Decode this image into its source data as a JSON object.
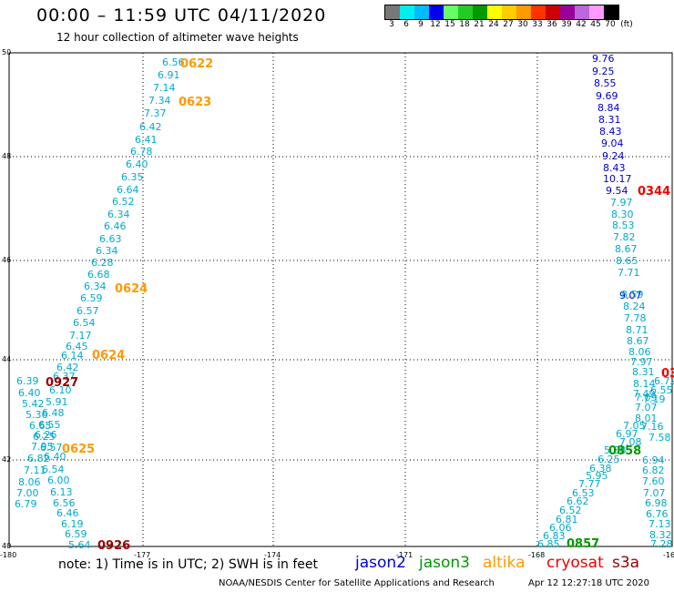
{
  "header": {
    "title": "00:00 – 11:59 UTC 04/11/2020",
    "subtitle": "12 hour collection of altimeter wave heights"
  },
  "legend": {
    "colors": [
      "#777777",
      "#00eeee",
      "#00bbff",
      "#0000ee",
      "#66ff66",
      "#22cc22",
      "#009900",
      "#ffff00",
      "#ffcc00",
      "#ff9900",
      "#ff3300",
      "#cc0000",
      "#990099",
      "#bb66dd",
      "#ff99ff",
      "#000000"
    ],
    "labels": [
      "3",
      "6",
      "9",
      "12",
      "15",
      "18",
      "21",
      "24",
      "27",
      "30",
      "33",
      "36",
      "39",
      "42",
      "45",
      "70",
      "(ft)"
    ]
  },
  "axes": {
    "lat_labels": [
      "50",
      "48",
      "46",
      "44",
      "42",
      "40"
    ],
    "lon_labels": [
      "-180",
      "-177",
      "-174",
      "-171",
      "-168",
      "-16"
    ]
  },
  "track_left_values": {
    "color": "#00aacc",
    "values": [
      "6.56",
      "6.91",
      "7.14",
      "7.34",
      "7.37",
      "6.42",
      "6.41",
      "6.78",
      "6.40",
      "6.35",
      "6.64",
      "6.52",
      "6.34",
      "6.46",
      "6.63",
      "6.34",
      "6.28",
      "6.68",
      "6.34",
      "6.59",
      "6.57",
      "6.54",
      "7.17",
      "6.45",
      "6.14",
      "6.42",
      "6.37",
      "6.10",
      "5.91",
      "6.48",
      "6.55",
      "6.26",
      "6.57",
      "6.40",
      "6.54",
      "6.00",
      "6.13",
      "6.56",
      "6.46",
      "6.19",
      "6.59",
      "5.64"
    ],
    "branch_values": [
      "6.39",
      "6.40",
      "5.42",
      "5.36",
      "6.65",
      "6.25",
      "7.95",
      "6.82",
      "7.11",
      "8.06",
      "7.00",
      "6.79"
    ]
  },
  "track_right_values": {
    "blue": [
      "9.76",
      "9.25",
      "8.55",
      "9.69",
      "8.84",
      "8.31",
      "8.43",
      "9.04",
      "9.24",
      "8.43",
      "10.17",
      "9.54",
      "9.07"
    ],
    "cyan": [
      "7.97",
      "8.30",
      "8.53",
      "7.82",
      "8.67",
      "8.65",
      "7.71",
      "8.59",
      "8.24",
      "7.78",
      "8.71",
      "8.67",
      "8.06",
      "7.97",
      "8.31",
      "8.14",
      "7.49",
      "7.07",
      "7.09",
      "8.01",
      "7.05",
      "7.16",
      "6.97",
      "7.58",
      "7.08",
      "5.88",
      "6.94",
      "6.82",
      "7.60",
      "7.07",
      "6.98",
      "6.76",
      "7.13",
      "8.32",
      "7.28"
    ],
    "lower_cyan": [
      "6.25",
      "6.38",
      "5.95",
      "7.77",
      "6.53",
      "6.62",
      "6.52",
      "6.81",
      "6.06",
      "6.83",
      "6.85"
    ],
    "edge_partial": [
      "6.72",
      "6.55",
      "7.19"
    ]
  },
  "time_labels": [
    {
      "text": "0622",
      "color": "#ff9900"
    },
    {
      "text": "0623",
      "color": "#ff9900"
    },
    {
      "text": "0624",
      "color": "#ff9900"
    },
    {
      "text": "0624",
      "color": "#ff9900"
    },
    {
      "text": "0927",
      "color": "#990000"
    },
    {
      "text": "0625",
      "color": "#ff9900"
    },
    {
      "text": "0926",
      "color": "#990000"
    },
    {
      "text": "0344",
      "color": "#ee0000"
    },
    {
      "text": "0858",
      "color": "#009900"
    },
    {
      "text": "0857",
      "color": "#009900"
    },
    {
      "text": "03",
      "color": "#ee0000"
    }
  ],
  "footer": {
    "note": "note: 1) Time is in UTC; 2) SWH is in feet",
    "sat_jason2": "jason2",
    "sat_jason3": "jason3",
    "sat_altika": "altika",
    "sat_cryosat": "cryosat",
    "sat_s3a": "s3a",
    "credit": "NOAA/NESDIS Center for Satellite Applications and Research",
    "stamp": "Apr 12 12:27:18 UTC 2020"
  },
  "colors": {
    "jason2": "#0000dd",
    "jason3": "#009900",
    "altika": "#ff9900",
    "cryosat": "#ee0000",
    "s3a": "#990000",
    "cyan_values": "#00aacc",
    "blue_values": "#0000cc"
  }
}
